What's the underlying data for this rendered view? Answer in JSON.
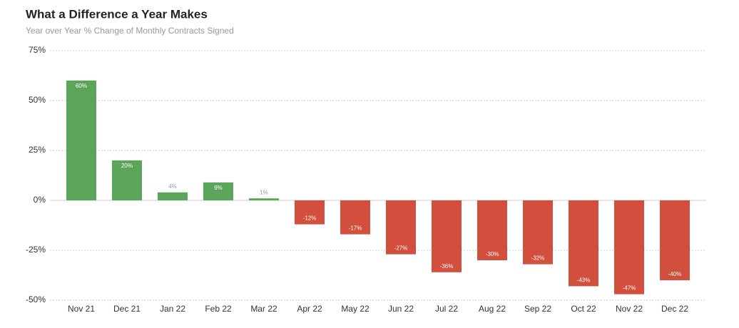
{
  "chart_data": {
    "type": "bar",
    "title": "What a Difference a Year Makes",
    "subtitle": "Year over Year % Change of Monthly Contracts Signed",
    "categories": [
      "Nov 21",
      "Dec 21",
      "Jan 22",
      "Feb 22",
      "Mar 22",
      "Apr 22",
      "May 22",
      "Jun 22",
      "Jul 22",
      "Aug 22",
      "Sep 22",
      "Oct 22",
      "Nov 22",
      "Dec 22"
    ],
    "values": [
      60,
      20,
      4,
      9,
      1,
      -12,
      -17,
      -27,
      -36,
      -30,
      -32,
      -43,
      -47,
      -40
    ],
    "value_labels": [
      "60%",
      "20%",
      "4%",
      "9%",
      "1%",
      "-12%",
      "-17%",
      "-27%",
      "-36%",
      "-30%",
      "-32%",
      "-43%",
      "-47%",
      "-40%"
    ],
    "positive_color": "#5aa55a",
    "negative_color": "#d14f3c",
    "ylim": [
      -50,
      75
    ],
    "yticks": [
      {
        "value": -50,
        "label": "-50%"
      },
      {
        "value": -25,
        "label": "-25%"
      },
      {
        "value": 0,
        "label": "0%"
      },
      {
        "value": 25,
        "label": "25%"
      },
      {
        "value": 50,
        "label": "50%"
      },
      {
        "value": 75,
        "label": "75%"
      }
    ],
    "grid": true
  }
}
